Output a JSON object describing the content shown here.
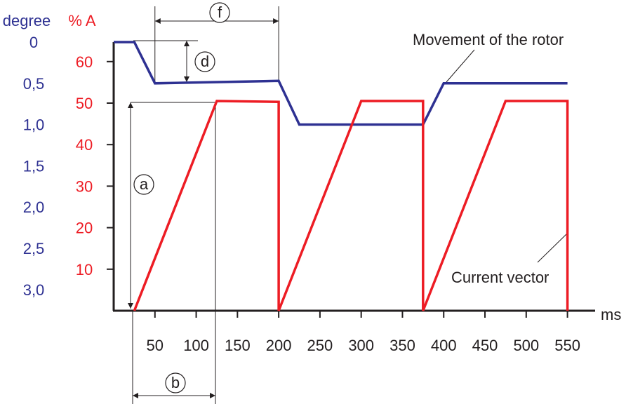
{
  "chart_data": {
    "type": "line",
    "x_unit": "ms",
    "x_ticks": [
      "50",
      "100",
      "150",
      "200",
      "250",
      "300",
      "350",
      "400",
      "450",
      "500",
      "550"
    ],
    "xlim": [
      0,
      560
    ],
    "left_axis": {
      "label": "degree",
      "color": "#2e3192",
      "ticks": [
        "0",
        "0,5",
        "1,0",
        "1,5",
        "2,0",
        "2,5",
        "3,0"
      ],
      "range": [
        0,
        3.0
      ],
      "inverted": true
    },
    "right_axis": {
      "label": "% A",
      "color": "#ed1c24",
      "ticks": [
        "10",
        "20",
        "30",
        "40",
        "50",
        "60"
      ],
      "range": [
        0,
        70
      ]
    },
    "series": [
      {
        "name": "Movement of the rotor",
        "axis": "degree",
        "color": "#2e3192",
        "x": [
          0,
          25,
          50,
          200,
          225,
          375,
          400,
          550
        ],
        "y": [
          0,
          0,
          0.5,
          0.47,
          1.0,
          1.0,
          0.5,
          0.5
        ]
      },
      {
        "name": "Current vector",
        "axis": "% A",
        "color": "#ed1c24",
        "x": [
          25,
          125,
          200,
          200,
          300,
          375,
          375,
          475,
          550,
          550
        ],
        "y": [
          0,
          50.5,
          50.3,
          0,
          50.5,
          50.5,
          0,
          50.5,
          50.5,
          0
        ]
      }
    ],
    "annotations": [
      "a",
      "b",
      "d",
      "f"
    ]
  }
}
